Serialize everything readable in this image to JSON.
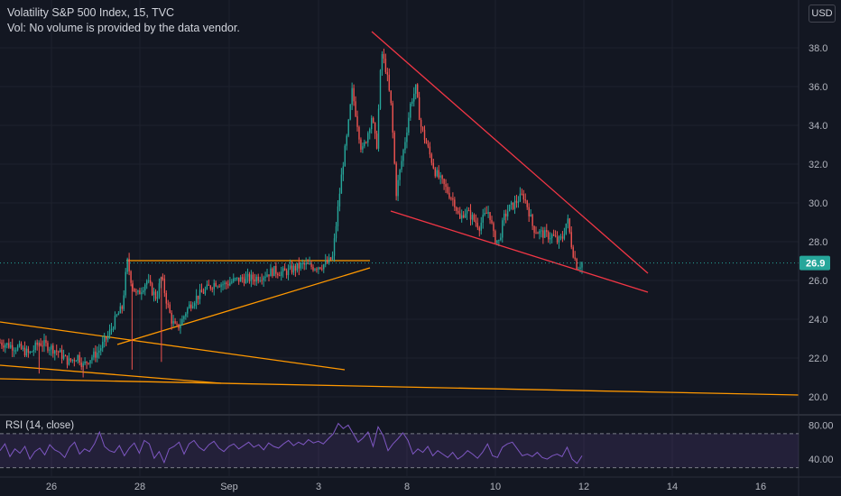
{
  "header": {
    "title": "Volatility S&P 500 Index, 15, TVC",
    "volume_note": "Vol: No volume is provided by the data vendor.",
    "currency_button": "USD"
  },
  "colors": {
    "background": "#131722",
    "up": "#26a69a",
    "down": "#ef5350",
    "orange_lines": "#ff9800",
    "red_lines": "#f23645",
    "rsi_line": "#7e57c2",
    "rsi_band": "rgba(126,87,194,0.15)",
    "price_label_bg": "#26a69a"
  },
  "chart_data": [
    {
      "type": "candlestick",
      "title": "Volatility S&P 500 Index, 15, TVC",
      "y_ticks": [
        "20.0",
        "22.0",
        "24.0",
        "26.0",
        "28.0",
        "30.0",
        "32.0",
        "34.0",
        "36.0",
        "38.0"
      ],
      "ylim": [
        19.5,
        39.5
      ],
      "x_tick_labels": [
        "26",
        "28",
        "Sep",
        "3",
        "8",
        "10",
        "12",
        "14",
        "16"
      ],
      "last_price": "26.9",
      "price_path": [
        [
          0,
          22.8
        ],
        [
          4,
          22.5
        ],
        [
          6,
          22.2
        ],
        [
          8,
          22.8
        ],
        [
          10,
          22.6
        ],
        [
          12,
          22.3
        ],
        [
          14,
          21.8
        ],
        [
          16,
          22.1
        ],
        [
          17,
          21.6
        ],
        [
          18,
          21.9
        ],
        [
          20,
          22.3
        ],
        [
          22,
          23.1
        ],
        [
          24,
          24.2
        ],
        [
          25,
          24.6
        ],
        [
          26,
          27.0
        ],
        [
          27,
          25.8
        ],
        [
          28,
          25.2
        ],
        [
          29,
          25.6
        ],
        [
          30,
          26.0
        ],
        [
          31,
          25.5
        ],
        [
          32,
          25.1
        ],
        [
          33,
          26.2
        ],
        [
          34,
          25.0
        ],
        [
          35,
          24.0
        ],
        [
          36,
          23.5
        ],
        [
          37,
          23.8
        ],
        [
          38,
          24.4
        ],
        [
          39,
          24.8
        ],
        [
          40,
          25.1
        ],
        [
          42,
          25.5
        ],
        [
          44,
          25.9
        ],
        [
          46,
          25.8
        ],
        [
          48,
          26.0
        ],
        [
          50,
          26.1
        ],
        [
          52,
          26.1
        ],
        [
          54,
          26.3
        ],
        [
          56,
          26.5
        ],
        [
          58,
          26.4
        ],
        [
          60,
          26.6
        ],
        [
          62,
          26.8
        ],
        [
          64,
          26.7
        ],
        [
          66,
          26.8
        ],
        [
          67,
          26.9
        ],
        [
          68,
          27.2
        ],
        [
          69,
          29.5
        ],
        [
          70,
          31.8
        ],
        [
          71,
          33.5
        ],
        [
          72,
          35.8
        ],
        [
          73,
          34.2
        ],
        [
          74,
          32.6
        ],
        [
          75,
          33.4
        ],
        [
          76,
          34.5
        ],
        [
          77,
          32.8
        ],
        [
          78,
          37.8
        ],
        [
          79,
          36.8
        ],
        [
          80,
          34.9
        ],
        [
          81,
          30.5
        ],
        [
          82,
          32.0
        ],
        [
          83,
          33.5
        ],
        [
          84,
          35.2
        ],
        [
          85,
          35.9
        ],
        [
          86,
          34.0
        ],
        [
          87,
          33.2
        ],
        [
          88,
          32.4
        ],
        [
          89,
          31.6
        ],
        [
          90,
          31.2
        ],
        [
          91,
          30.8
        ],
        [
          92,
          30.4
        ],
        [
          93,
          30.0
        ],
        [
          94,
          29.1
        ],
        [
          95,
          29.6
        ],
        [
          96,
          29.4
        ],
        [
          97,
          29.1
        ],
        [
          98,
          28.8
        ],
        [
          99,
          29.3
        ],
        [
          100,
          29.6
        ],
        [
          101,
          28.2
        ],
        [
          102,
          28.0
        ],
        [
          103,
          29.2
        ],
        [
          104,
          29.7
        ],
        [
          105,
          29.9
        ],
        [
          106,
          30.2
        ],
        [
          107,
          30.4
        ],
        [
          108,
          29.7
        ],
        [
          109,
          28.7
        ],
        [
          110,
          28.5
        ],
        [
          111,
          28.4
        ],
        [
          112,
          28.3
        ],
        [
          113,
          28.3
        ],
        [
          114,
          28.0
        ],
        [
          115,
          28.2
        ],
        [
          116,
          29.2
        ],
        [
          117,
          27.6
        ],
        [
          118,
          26.7
        ],
        [
          119,
          26.9
        ]
      ],
      "x_max": 119
    },
    {
      "type": "line",
      "title": "RSI (14, close)",
      "y_ticks": [
        "80.00",
        "40.00"
      ],
      "ylim": [
        20,
        90
      ],
      "bands": [
        70,
        30
      ],
      "rsi_values": [
        50,
        58,
        43,
        52,
        47,
        55,
        40,
        49,
        53,
        45,
        57,
        51,
        48,
        42,
        54,
        60,
        46,
        52,
        49,
        58,
        72,
        55,
        50,
        48,
        56,
        44,
        53,
        59,
        47,
        62,
        58,
        41,
        49,
        36,
        52,
        55,
        60,
        46,
        58,
        62,
        54,
        50,
        57,
        61,
        53,
        49,
        55,
        58,
        52,
        56,
        60,
        54,
        57,
        51,
        59,
        55,
        53,
        58,
        62,
        56,
        60,
        57,
        63,
        59,
        61,
        58,
        64,
        70,
        82,
        76,
        80,
        70,
        60,
        65,
        72,
        55,
        78,
        68,
        50,
        58,
        64,
        71,
        62,
        46,
        52,
        48,
        55,
        44,
        50,
        46,
        42,
        48,
        40,
        44,
        50,
        46,
        41,
        48,
        58,
        44,
        42,
        54,
        58,
        60,
        52,
        44,
        46,
        43,
        48,
        42,
        40,
        44,
        46,
        43,
        54,
        40,
        35,
        44
      ]
    }
  ],
  "drawings": {
    "orange_triangle_top": [
      [
        140,
        289
      ],
      [
        410,
        289
      ]
    ],
    "orange_triangle_bottom": [
      [
        130,
        382
      ],
      [
        410,
        297
      ]
    ],
    "orange_descending": [
      [
        0,
        357
      ],
      [
        382,
        410
      ]
    ],
    "orange_support_short": [
      [
        0,
        405
      ],
      [
        245,
        425
      ]
    ],
    "orange_long_base": [
      [
        0,
        420
      ],
      [
        885,
        438
      ]
    ],
    "red_upper": [
      [
        412,
        35
      ],
      [
        718,
        303
      ]
    ],
    "red_lower": [
      [
        433,
        234
      ],
      [
        718,
        324
      ]
    ]
  }
}
